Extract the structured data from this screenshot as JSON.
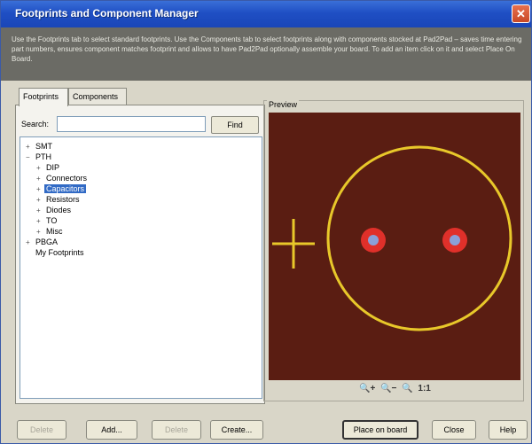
{
  "window": {
    "title": "Footprints and Component Manager",
    "close_glyph": "✕"
  },
  "banner": {
    "text": "Use the Footprints tab to select standard footprints. Use the Components tab to select footprints along with components stocked at Pad2Pad – saves time entering part numbers, ensures component matches footprint and allows to have Pad2Pad optionally assemble your board. To add an item click on it and select Place On Board."
  },
  "tabs": [
    {
      "label": "Footprints",
      "active": true
    },
    {
      "label": "Components",
      "active": false
    }
  ],
  "search": {
    "label": "Search:",
    "value": "",
    "find_label": "Find"
  },
  "tree": [
    {
      "label": "SMT",
      "level": 0,
      "expander": "+",
      "selected": false
    },
    {
      "label": "PTH",
      "level": 0,
      "expander": "−",
      "selected": false
    },
    {
      "label": "DIP",
      "level": 1,
      "expander": "+",
      "selected": false
    },
    {
      "label": "Connectors",
      "level": 1,
      "expander": "+",
      "selected": false
    },
    {
      "label": "Capacitors",
      "level": 1,
      "expander": "+",
      "selected": true
    },
    {
      "label": "Resistors",
      "level": 1,
      "expander": "+",
      "selected": false
    },
    {
      "label": "Diodes",
      "level": 1,
      "expander": "+",
      "selected": false
    },
    {
      "label": "TO",
      "level": 1,
      "expander": "+",
      "selected": false
    },
    {
      "label": "Misc",
      "level": 1,
      "expander": "+",
      "selected": false
    },
    {
      "label": "PBGA",
      "level": 0,
      "expander": "+",
      "selected": false
    },
    {
      "label": "My Footprints",
      "level": 0,
      "expander": "",
      "selected": false
    }
  ],
  "preview": {
    "label": "Preview",
    "background": "#5a1d12",
    "outline_color": "#e8c82a",
    "pad_color": "#e0302a",
    "hole_color": "#8aa0d8"
  },
  "zoom": {
    "zoom_in": "🔍+",
    "zoom_out": "🔍−",
    "zoom_fit": "🔍",
    "one_to_one": "1:1"
  },
  "buttons": {
    "remove": "Delete",
    "add": "Add...",
    "delete": "Delete",
    "create": "Create...",
    "place": "Place on board",
    "close": "Close",
    "help": "Help"
  }
}
